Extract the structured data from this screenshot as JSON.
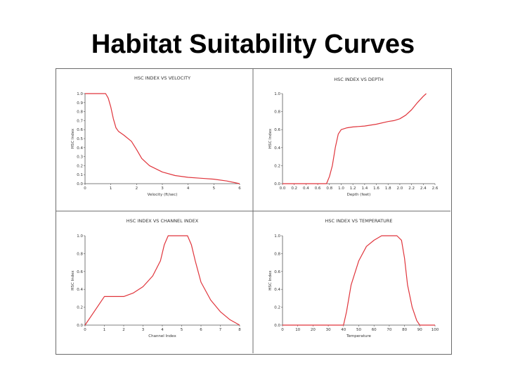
{
  "slide": {
    "title": "Habitat Suitability Curves"
  },
  "colors": {
    "curve": "#e0353c",
    "axis": "#555555",
    "frame": "#6b6b6b"
  },
  "chart_data": [
    {
      "type": "line",
      "title": "HSC INDEX VS VELOCITY",
      "xlabel": "Velocity (ft/sec)",
      "ylabel": "HSC Index",
      "xlim": [
        0,
        6
      ],
      "ylim": [
        0,
        1
      ],
      "xticks": [
        "0",
        "1",
        "2",
        "3",
        "4",
        "5",
        "6"
      ],
      "yticks": [
        "0.0",
        "0.1",
        "0.2",
        "0.3",
        "0.4",
        "0.5",
        "0.6",
        "0.7",
        "0.8",
        "0.9",
        "1.0"
      ],
      "series": [
        {
          "x": [
            0,
            0.8,
            0.9,
            1.0,
            1.1,
            1.2,
            1.3,
            1.5,
            1.8,
            2.0,
            2.2,
            2.5,
            3.0,
            3.5,
            4.0,
            4.5,
            5.0,
            5.5,
            6.0
          ],
          "y": [
            1.0,
            1.0,
            0.95,
            0.85,
            0.72,
            0.62,
            0.58,
            0.54,
            0.47,
            0.38,
            0.28,
            0.2,
            0.13,
            0.09,
            0.07,
            0.06,
            0.05,
            0.03,
            0.0
          ]
        }
      ]
    },
    {
      "type": "line",
      "title": "HSC INDEX VS DEPTH",
      "xlabel": "Depth (feet)",
      "ylabel": "HSC Index",
      "xlim": [
        0,
        2.6
      ],
      "ylim": [
        0,
        1
      ],
      "xticks": [
        "0.0",
        "0.2",
        "0.4",
        "0.6",
        "0.8",
        "1.0",
        "1.2",
        "1.4",
        "1.6",
        "1.8",
        "2.0",
        "2.2",
        "2.4",
        "2.6"
      ],
      "yticks": [
        "0.0",
        "0.2",
        "0.4",
        "0.6",
        "0.8",
        "1.0"
      ],
      "series": [
        {
          "x": [
            0,
            0.75,
            0.8,
            0.85,
            0.9,
            0.95,
            1.0,
            1.1,
            1.2,
            1.4,
            1.6,
            1.8,
            1.9,
            2.0,
            2.1,
            2.2,
            2.3,
            2.4,
            2.45
          ],
          "y": [
            0,
            0,
            0.08,
            0.2,
            0.4,
            0.55,
            0.6,
            0.62,
            0.63,
            0.64,
            0.66,
            0.69,
            0.7,
            0.72,
            0.76,
            0.82,
            0.9,
            0.97,
            1.0
          ]
        }
      ]
    },
    {
      "type": "line",
      "title": "HSC INDEX VS CHANNEL INDEX",
      "xlabel": "Channel Index",
      "ylabel": "HSC Index",
      "xlim": [
        0,
        8
      ],
      "ylim": [
        0,
        1
      ],
      "xticks": [
        "0",
        "1",
        "2",
        "3",
        "4",
        "5",
        "6",
        "7",
        "8"
      ],
      "yticks": [
        "0.0",
        "0.2",
        "0.4",
        "0.6",
        "0.8",
        "1.0"
      ],
      "series": [
        {
          "x": [
            0,
            1.0,
            2.0,
            2.5,
            3.0,
            3.5,
            3.9,
            4.1,
            4.3,
            5.3,
            5.5,
            5.7,
            6.0,
            6.5,
            7.0,
            7.5,
            8.0
          ],
          "y": [
            0,
            0.32,
            0.32,
            0.36,
            0.43,
            0.55,
            0.72,
            0.9,
            1.0,
            1.0,
            0.9,
            0.72,
            0.48,
            0.28,
            0.15,
            0.06,
            0.0
          ]
        }
      ]
    },
    {
      "type": "line",
      "title": "HSC INDEX VS TEMPERATURE",
      "xlabel": "Temperature",
      "ylabel": "HSC Index",
      "xlim": [
        0,
        100
      ],
      "ylim": [
        0,
        1
      ],
      "xticks": [
        "0",
        "10",
        "20",
        "30",
        "40",
        "50",
        "60",
        "70",
        "80",
        "90",
        "100"
      ],
      "yticks": [
        "0.0",
        "0.2",
        "0.4",
        "0.6",
        "0.8",
        "1.0"
      ],
      "series": [
        {
          "x": [
            0,
            40,
            42,
            45,
            50,
            55,
            60,
            65,
            70,
            75,
            78,
            80,
            82,
            85,
            88,
            90,
            100
          ],
          "y": [
            0,
            0,
            0.15,
            0.45,
            0.72,
            0.88,
            0.95,
            1.0,
            1.0,
            1.0,
            0.95,
            0.75,
            0.45,
            0.2,
            0.05,
            0,
            0
          ]
        }
      ]
    }
  ]
}
